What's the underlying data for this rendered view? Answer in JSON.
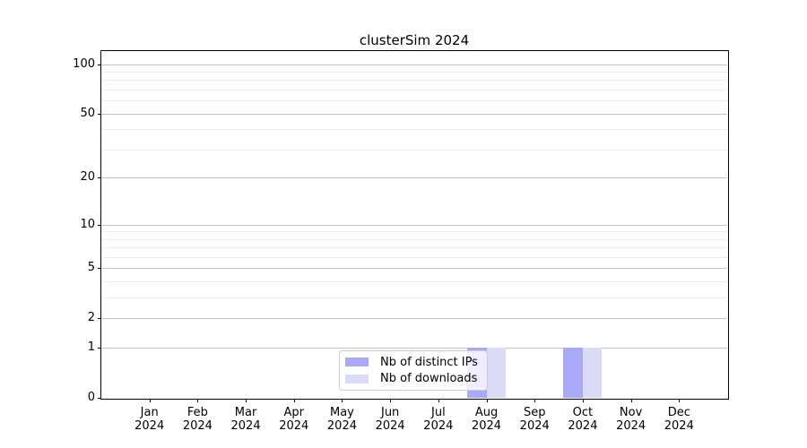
{
  "chart_data": {
    "type": "bar",
    "title": "clusterSim 2024",
    "x_categories": [
      "Jan",
      "Feb",
      "Mar",
      "Apr",
      "May",
      "Jun",
      "Jul",
      "Aug",
      "Sep",
      "Oct",
      "Nov",
      "Dec"
    ],
    "x_year": "2024",
    "series": [
      {
        "name": "Nb of distinct IPs",
        "color": "#a9a9f8",
        "values": [
          0,
          0,
          0,
          0,
          0,
          0,
          0,
          1,
          0,
          1,
          0,
          0
        ]
      },
      {
        "name": "Nb of downloads",
        "color": "#dbdbf8",
        "values": [
          0,
          0,
          0,
          0,
          0,
          0,
          0,
          1,
          0,
          1,
          0,
          0
        ]
      }
    ],
    "y_scale": "log(1+y)",
    "ylim": [
      0,
      120
    ],
    "y_ticks": [
      0,
      1,
      2,
      5,
      10,
      20,
      50,
      100
    ],
    "y_minor_ticks": [
      3,
      4,
      6,
      7,
      8,
      9,
      30,
      40,
      60,
      70,
      80,
      90
    ],
    "grid": true,
    "legend_position": "lower center"
  },
  "colors": {
    "background": "#ffffff",
    "axis": "#000000",
    "grid_major": "#c3c3c3",
    "grid_minor": "#ececec",
    "legend_border": "#cccccc",
    "text": "#000000"
  }
}
